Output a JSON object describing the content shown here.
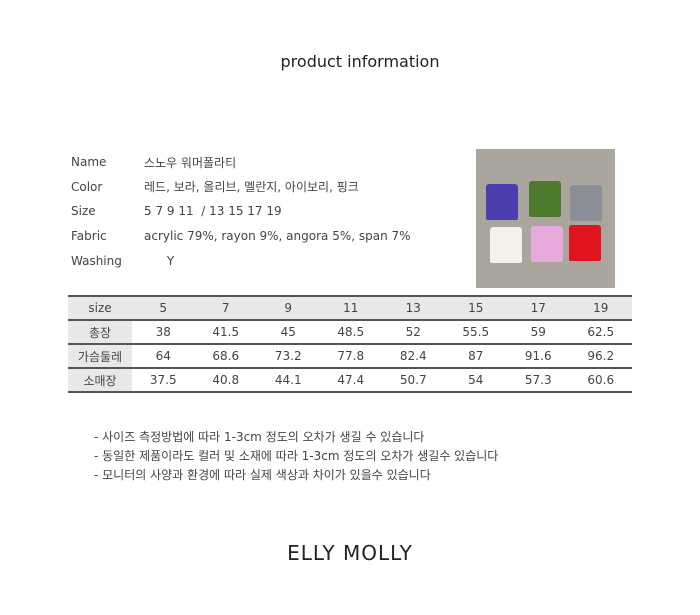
{
  "title": "product information",
  "info": [
    {
      "label": "Name",
      "value": "스노우 워머폴라티"
    },
    {
      "label": "Color",
      "value": "레드, 보라, 올리브, 멜란지, 아이보리, 핑크"
    },
    {
      "label": "Size",
      "value": "5 7 9 11  / 13 15 17 19"
    },
    {
      "label": "Fabric",
      "value": "acrylic 79%, rayon 9%, angora 5%, span 7%"
    },
    {
      "label": "Washing",
      "value": "      Y"
    }
  ],
  "swatches": [
    "#4b3fb0",
    "#4e7a2e",
    "#8a8e96",
    "#f3f1ea",
    "#e6a9d9",
    "#e0141f"
  ],
  "table": {
    "header": [
      "size",
      "5",
      "7",
      "9",
      "11",
      "13",
      "15",
      "17",
      "19"
    ],
    "rows": [
      [
        "총장",
        "38",
        "41.5",
        "45",
        "48.5",
        "52",
        "55.5",
        "59",
        "62.5"
      ],
      [
        "가슴둘레",
        "64",
        "68.6",
        "73.2",
        "77.8",
        "82.4",
        "87",
        "91.6",
        "96.2"
      ],
      [
        "소매장",
        "37.5",
        "40.8",
        "44.1",
        "47.4",
        "50.7",
        "54",
        "57.3",
        "60.6"
      ]
    ]
  },
  "notes": [
    "- 사이즈 측정방법에 따라 1-3cm 정도의 오차가 생길 수 있습니다",
    "- 동일한 제품이라도 컬러 및 소재에 따라 1-3cm 정도의 오차가 생길수 있습니다",
    "- 모니터의 사양과 환경에 따라 실제 색상과 차이가 있을수 있습니다"
  ],
  "brand": "ELLY MOLLY"
}
